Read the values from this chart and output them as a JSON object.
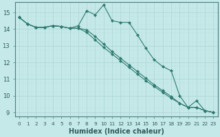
{
  "xlabel": "Humidex (Indice chaleur)",
  "bg_color": "#c5e8e8",
  "grid_color_major": "#aad4d4",
  "grid_color_minor": "#bde0e0",
  "line_color": "#2d7a70",
  "xlim": [
    -0.5,
    23.5
  ],
  "ylim": [
    8.75,
    15.6
  ],
  "xticks": [
    0,
    1,
    2,
    3,
    4,
    5,
    6,
    7,
    8,
    9,
    10,
    11,
    12,
    13,
    14,
    15,
    16,
    17,
    18,
    19,
    20,
    21,
    22,
    23
  ],
  "yticks": [
    9,
    10,
    11,
    12,
    13,
    14,
    15
  ],
  "line1": [
    14.7,
    14.3,
    14.1,
    14.1,
    14.2,
    14.15,
    14.05,
    14.2,
    15.1,
    14.85,
    15.45,
    14.5,
    14.4,
    14.4,
    13.65,
    12.85,
    12.15,
    11.75,
    11.5,
    10.0,
    9.3,
    9.7,
    9.1,
    9.0
  ],
  "line2": [
    14.7,
    14.3,
    14.1,
    14.1,
    14.2,
    14.15,
    14.05,
    14.05,
    13.95,
    13.55,
    13.1,
    12.65,
    12.25,
    11.85,
    11.45,
    11.05,
    10.65,
    10.3,
    9.95,
    9.55,
    9.3,
    9.3,
    9.1,
    9.0
  ],
  "line3": [
    14.7,
    14.3,
    14.1,
    14.1,
    14.2,
    14.15,
    14.05,
    14.05,
    13.8,
    13.35,
    12.9,
    12.5,
    12.1,
    11.7,
    11.3,
    10.9,
    10.55,
    10.2,
    9.85,
    9.55,
    9.3,
    9.3,
    9.1,
    9.0
  ]
}
